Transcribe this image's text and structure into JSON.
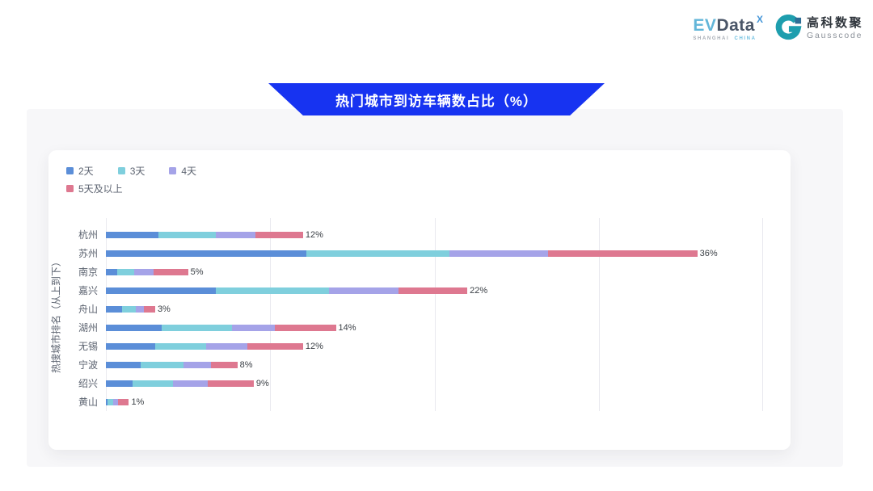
{
  "header": {
    "evdata_logo": {
      "part1": "EV",
      "part2": "Data",
      "sup": "X",
      "subtext_left": "SHANGHAI",
      "subtext_right": "CHINA"
    },
    "gausscode_logo": {
      "cn": "高科数聚",
      "en": "Gausscode"
    }
  },
  "banner": {
    "title": "热门城市到访车辆数占比（%）"
  },
  "colors": {
    "banner_blue": "#1733f1",
    "bar_blue": "#5b8ed8",
    "bar_teal": "#7fcfdd",
    "bar_purple": "#a5a3e8",
    "bar_red": "#de7890",
    "gridline": "#e9e9ef"
  },
  "chart_data": {
    "type": "bar",
    "orientation": "horizontal",
    "stacked": true,
    "title": "热门城市到访车辆数占比（%）",
    "ylabel": "热搜城市排名（从上到下）",
    "xlabel": "",
    "xlim": [
      0,
      40
    ],
    "gridlines_percent": [
      0,
      10,
      20,
      30,
      40
    ],
    "grid": true,
    "legend_position": "top-left",
    "categories": [
      "杭州",
      "苏州",
      "南京",
      "嘉兴",
      "舟山",
      "湖州",
      "无锡",
      "宁波",
      "绍兴",
      "黄山"
    ],
    "series": [
      {
        "name": "2天",
        "color": "#5b8ed8",
        "values": [
          3.2,
          12.2,
          0.7,
          6.7,
          1.0,
          3.4,
          3.0,
          2.1,
          1.6,
          0.1
        ]
      },
      {
        "name": "3天",
        "color": "#7fcfdd",
        "values": [
          3.5,
          8.7,
          1.0,
          6.9,
          0.8,
          4.3,
          3.1,
          2.6,
          2.5,
          0.35
        ]
      },
      {
        "name": "4天",
        "color": "#a5a3e8",
        "values": [
          2.4,
          6.0,
          1.2,
          4.2,
          0.5,
          2.6,
          2.5,
          1.7,
          2.1,
          0.3
        ]
      },
      {
        "name": "5天及以上",
        "color": "#de7890",
        "values": [
          2.9,
          9.1,
          2.1,
          4.2,
          0.7,
          3.7,
          3.4,
          1.6,
          2.8,
          0.65
        ]
      }
    ],
    "total_labels": [
      "12%",
      "36%",
      "5%",
      "22%",
      "3%",
      "14%",
      "12%",
      "8%",
      "9%",
      "1%"
    ]
  }
}
